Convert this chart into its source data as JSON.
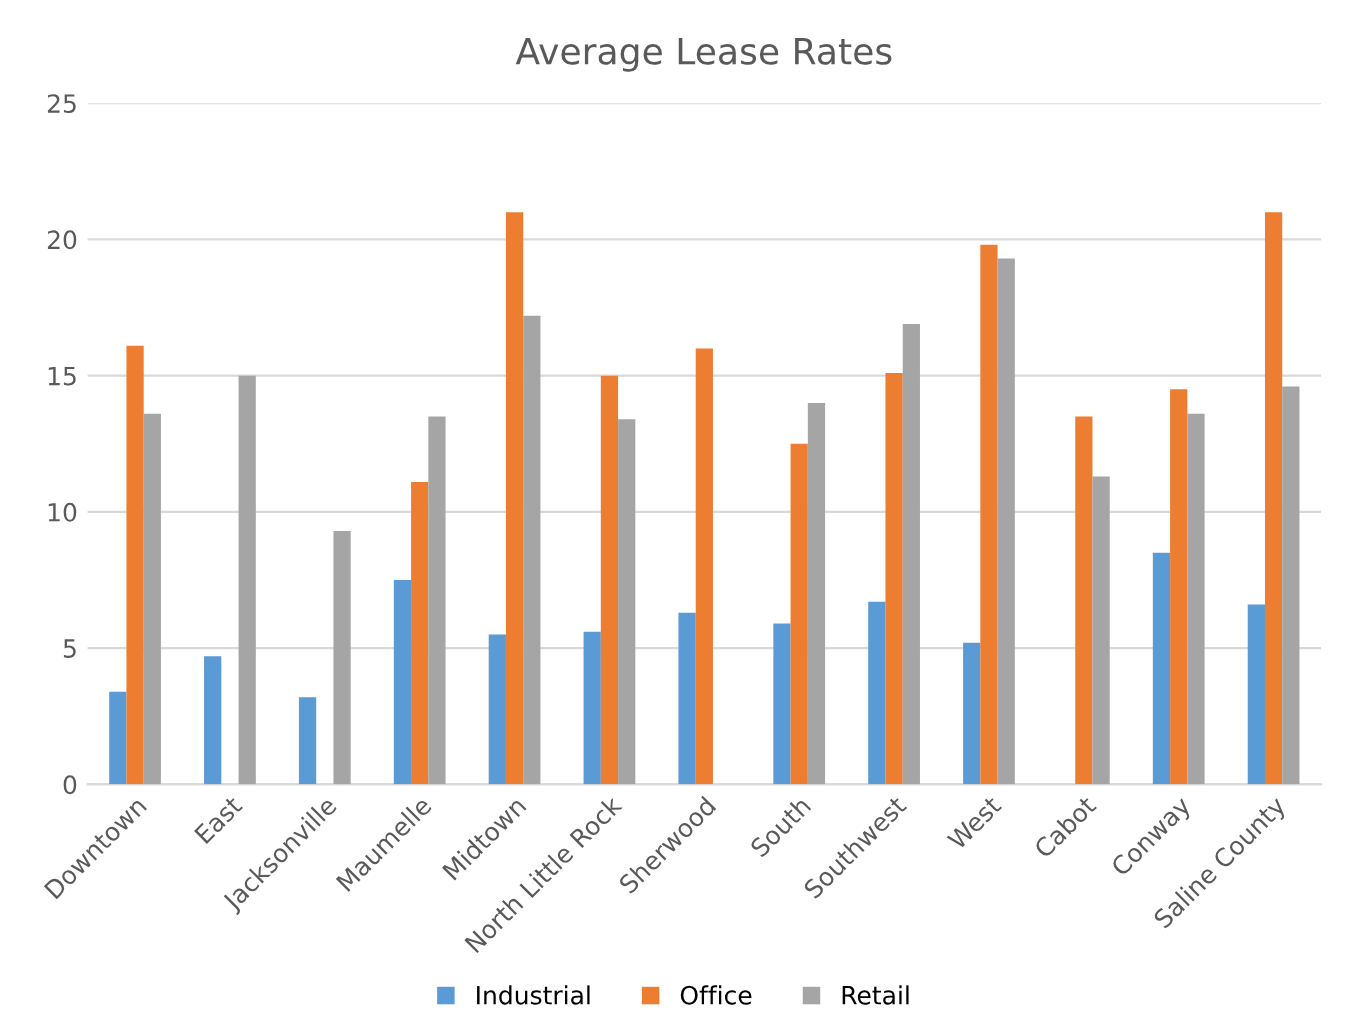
{
  "chart_data": {
    "type": "bar",
    "title": "Average Lease Rates",
    "categories": [
      "Downtown",
      "East",
      "Jacksonville",
      "Maumelle",
      "Midtown",
      "North Little Rock",
      "Sherwood",
      "South",
      "Southwest",
      "West",
      "Cabot",
      "Conway",
      "Saline County"
    ],
    "series": [
      {
        "name": "Industrial",
        "color": "#5b9bd5",
        "values": [
          3.4,
          4.7,
          3.2,
          7.5,
          5.5,
          5.6,
          6.3,
          5.9,
          6.7,
          5.2,
          null,
          8.5,
          6.6
        ]
      },
      {
        "name": "Office",
        "color": "#ed7d31",
        "values": [
          16.1,
          null,
          null,
          11.1,
          21.0,
          15.0,
          16.0,
          12.5,
          15.1,
          19.8,
          13.5,
          14.5,
          21.0
        ]
      },
      {
        "name": "Retail",
        "color": "#a5a5a5",
        "values": [
          13.6,
          15.0,
          9.3,
          13.5,
          17.2,
          13.4,
          null,
          14.0,
          16.9,
          19.3,
          11.3,
          13.6,
          14.6
        ]
      }
    ],
    "ylim": [
      0,
      25
    ],
    "yticks": [
      0,
      5,
      10,
      15,
      20,
      25
    ],
    "grid": "y",
    "legend": "bottom"
  }
}
